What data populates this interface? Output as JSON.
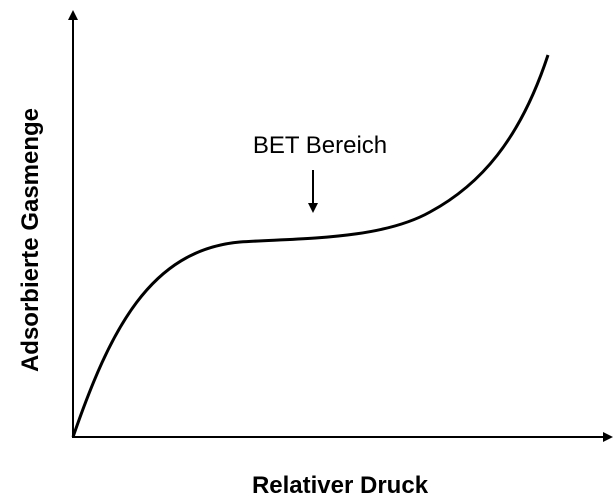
{
  "diagram": {
    "x_axis_label": "Relativer Druck",
    "y_axis_label": "Adsorbierte Gasmenge",
    "annotation": "BET Bereich"
  }
}
